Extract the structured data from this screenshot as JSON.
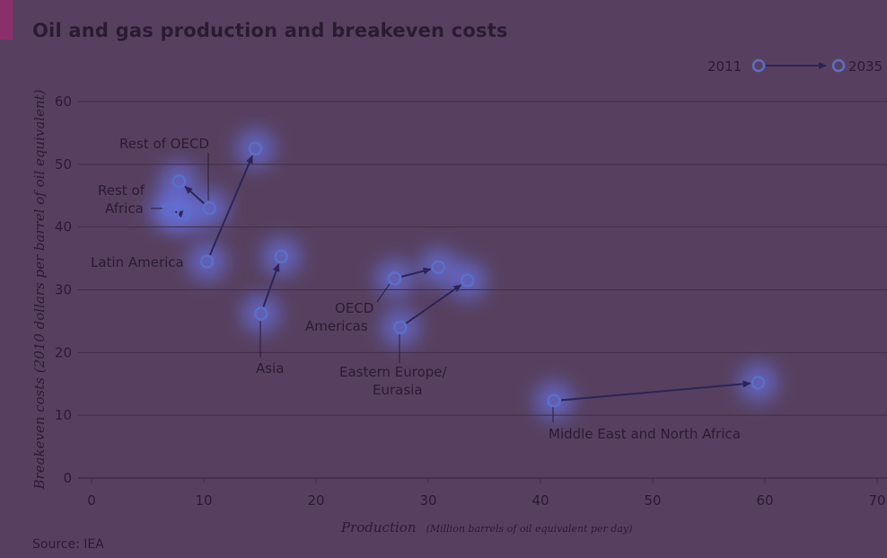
{
  "header": {
    "title": "Oil and gas production and breakeven costs"
  },
  "footer": {
    "source": "Source: IEA"
  },
  "legend": {
    "start_label": "2011",
    "end_label": "2035"
  },
  "colors": {
    "background": "#57405f",
    "text": "#2b1a33",
    "grid": "#3f2c47",
    "marker": "#5a6fc8",
    "arrow": "#2c2458",
    "glow": "#6c7dff",
    "accent": "#8a2f6c"
  },
  "chart_data": {
    "type": "scatter",
    "title": "Oil and gas production and breakeven costs",
    "xlabel": "Production",
    "xlabel_unit": "(Million barrels of oil equivalent per day)",
    "ylabel": "Breakeven costs (2010 dollars per barrel of oil equivalent)",
    "xlim": [
      0,
      70
    ],
    "ylim": [
      0,
      60
    ],
    "xticks": [
      0,
      10,
      20,
      30,
      40,
      50,
      60,
      70
    ],
    "yticks": [
      0,
      10,
      20,
      30,
      40,
      50,
      60
    ],
    "grid": true,
    "legend_position": "top-right",
    "series": [
      {
        "name": "Rest of OECD",
        "start": [
          10.5,
          43
        ],
        "end": [
          7.8,
          47.3
        ]
      },
      {
        "name": "Rest of Africa",
        "start": [
          8.2,
          42
        ],
        "end": [
          6.8,
          42.8
        ]
      },
      {
        "name": "Latin America",
        "start": [
          10.3,
          34.5
        ],
        "end": [
          14.6,
          52.5
        ]
      },
      {
        "name": "Asia",
        "start": [
          15.1,
          26.2
        ],
        "end": [
          16.9,
          35.3
        ]
      },
      {
        "name": "OECD Americas",
        "start": [
          27,
          31.8
        ],
        "end": [
          30.9,
          33.6
        ]
      },
      {
        "name": "Eastern Europe/ Eurasia",
        "start": [
          27.5,
          24
        ],
        "end": [
          33.5,
          31.5
        ]
      },
      {
        "name": "Middle East and North Africa",
        "start": [
          41.2,
          12.3
        ],
        "end": [
          59.4,
          15.2
        ]
      }
    ]
  }
}
